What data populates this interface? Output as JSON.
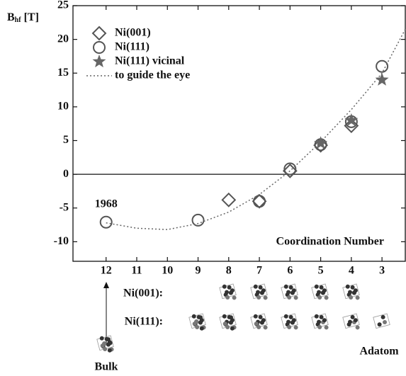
{
  "chart_data": {
    "type": "scatter",
    "y_label": {
      "symbol": "B",
      "subscript": "hf",
      "unit": "[T]"
    },
    "x_label": "Coordination Number",
    "annotation": {
      "text": "1968",
      "x": 12
    },
    "xlim": [
      13.08,
      2.24
    ],
    "xticks": [
      12,
      11,
      10,
      9,
      8,
      7,
      6,
      5,
      4,
      3
    ],
    "ylim": [
      -12.9,
      25
    ],
    "yticks": [
      -10,
      -5,
      0,
      5,
      10,
      15,
      20,
      25
    ],
    "zero_line": true,
    "legend": "upper-left",
    "series": [
      {
        "name": "Ni(001)",
        "marker": "diamond",
        "color": "#555555",
        "x": [
          8,
          7,
          6,
          5,
          4
        ],
        "values": [
          -3.8,
          -4.0,
          0.5,
          4.3,
          7.2
        ]
      },
      {
        "name": "Ni(111)",
        "marker": "circle",
        "color": "#555555",
        "x": [
          12,
          9,
          7,
          6,
          5,
          4,
          3
        ],
        "values": [
          -7.1,
          -6.8,
          -4.0,
          0.8,
          4.4,
          7.8,
          16.0
        ]
      },
      {
        "name": "Ni(111) vicinal",
        "marker": "star",
        "color": "#666666",
        "x": [
          5,
          4,
          3
        ],
        "values": [
          4.6,
          8.0,
          14.0
        ]
      },
      {
        "name": "to guide the eye",
        "marker": "dotted-line",
        "color": "#666666",
        "x": [
          12,
          11,
          10,
          9,
          8,
          7,
          6,
          5,
          4,
          3,
          2.24
        ],
        "values": [
          -7.2,
          -8.0,
          -8.2,
          -7.3,
          -5.6,
          -3.0,
          0.5,
          4.8,
          9.6,
          15.0,
          21.5
        ]
      }
    ]
  },
  "structures": {
    "rows": [
      "Ni(001):",
      "Ni(111):"
    ],
    "bulk": "Bulk",
    "adatom": "Adatom"
  }
}
